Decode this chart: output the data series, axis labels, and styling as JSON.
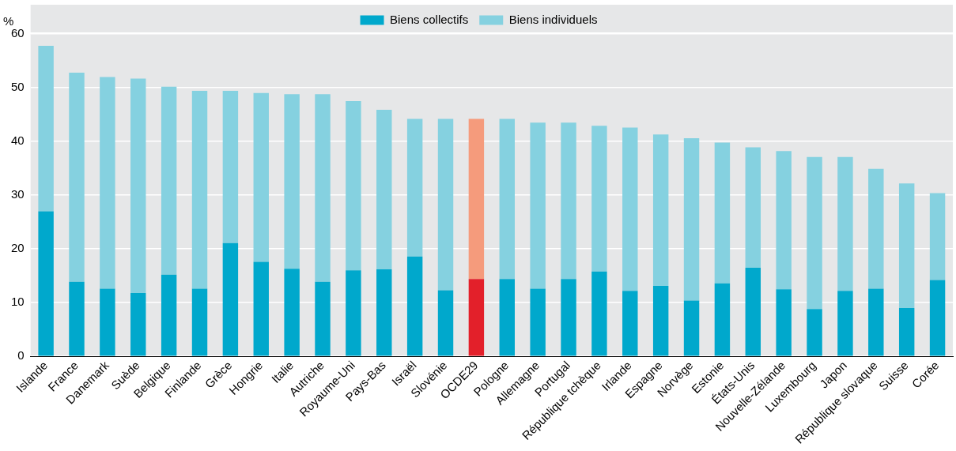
{
  "chart_data": {
    "type": "bar",
    "stacked": true,
    "ylabel": "%",
    "categories": [
      "Islande",
      "France",
      "Danemark",
      "Suède",
      "Belgique",
      "Finlande",
      "Grèce",
      "Hongrie",
      "Italie",
      "Autriche",
      "Royaume-Uni",
      "Pays-Bas",
      "Israël",
      "Slovénie",
      "OCDE29",
      "Pologne",
      "Allemagne",
      "Portugal",
      "République tchèque",
      "Irlande",
      "Espagne",
      "Norvège",
      "Estonie",
      "États-Unis",
      "Nouvelle-Zélande",
      "Luxembourg",
      "Japon",
      "République slovaque",
      "Suisse",
      "Corée"
    ],
    "series": [
      {
        "name": "Biens collectifs",
        "color": "#00a8cc",
        "colors": [
          "#00a8cc",
          "#00a8cc",
          "#00a8cc",
          "#00a8cc",
          "#00a8cc",
          "#00a8cc",
          "#00a8cc",
          "#00a8cc",
          "#00a8cc",
          "#00a8cc",
          "#00a8cc",
          "#00a8cc",
          "#00a8cc",
          "#00a8cc",
          "#e3202a",
          "#00a8cc",
          "#00a8cc",
          "#00a8cc",
          "#00a8cc",
          "#00a8cc",
          "#00a8cc",
          "#00a8cc",
          "#00a8cc",
          "#00a8cc",
          "#00a8cc",
          "#00a8cc",
          "#00a8cc",
          "#00a8cc",
          "#00a8cc",
          "#00a8cc"
        ],
        "values": [
          27.0,
          13.9,
          12.6,
          11.8,
          15.2,
          12.6,
          21.1,
          17.6,
          16.3,
          13.9,
          16.0,
          16.2,
          18.6,
          12.3,
          14.4,
          14.4,
          12.6,
          14.4,
          15.8,
          12.2,
          13.1,
          10.4,
          13.6,
          16.5,
          12.5,
          8.8,
          12.2,
          12.6,
          9.0,
          14.2
        ]
      },
      {
        "name": "Biens individuels",
        "color": "#85d1e0",
        "colors": [
          "#85d1e0",
          "#85d1e0",
          "#85d1e0",
          "#85d1e0",
          "#85d1e0",
          "#85d1e0",
          "#85d1e0",
          "#85d1e0",
          "#85d1e0",
          "#85d1e0",
          "#85d1e0",
          "#85d1e0",
          "#85d1e0",
          "#85d1e0",
          "#f59b7c",
          "#85d1e0",
          "#85d1e0",
          "#85d1e0",
          "#85d1e0",
          "#85d1e0",
          "#85d1e0",
          "#85d1e0",
          "#85d1e0",
          "#85d1e0",
          "#85d1e0",
          "#85d1e0",
          "#85d1e0",
          "#85d1e0",
          "#85d1e0",
          "#85d1e0"
        ],
        "values": [
          30.8,
          38.9,
          39.4,
          39.9,
          35.0,
          36.8,
          28.3,
          31.4,
          32.5,
          34.9,
          31.5,
          29.7,
          25.6,
          31.9,
          29.8,
          29.8,
          30.9,
          29.1,
          27.1,
          30.4,
          28.2,
          30.2,
          26.2,
          22.4,
          25.7,
          28.3,
          24.9,
          22.3,
          23.2,
          16.2
        ]
      }
    ],
    "ylim": [
      0,
      60
    ],
    "yticks": [
      0,
      10,
      20,
      30,
      40,
      50,
      60
    ],
    "grid": "y",
    "legend": "top"
  }
}
